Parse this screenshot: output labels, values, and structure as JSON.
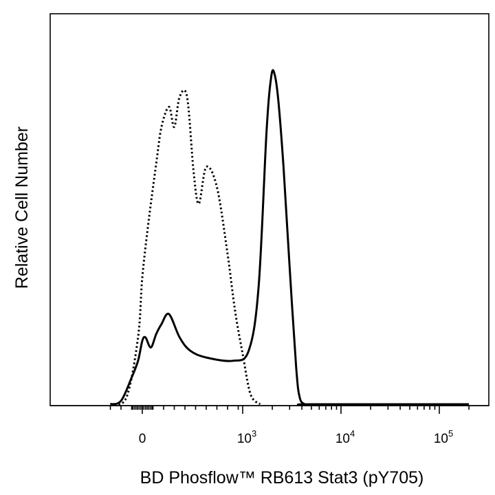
{
  "chart_data": {
    "type": "line",
    "title": "",
    "xlabel": "BD Phosflow™ RB613 Stat3 (pY705)",
    "ylabel": "Relative Cell Number",
    "x_scale": "biexponential",
    "xlim": [
      -300,
      200000
    ],
    "ylim": [
      0,
      100
    ],
    "grid": false,
    "legend": "none",
    "x_ticks": [
      {
        "value": 0,
        "base": "0",
        "exp": ""
      },
      {
        "value": 1000,
        "base": "10",
        "exp": "3"
      },
      {
        "value": 10000,
        "base": "10",
        "exp": "4"
      },
      {
        "value": 100000,
        "base": "10",
        "exp": "5"
      }
    ],
    "series": [
      {
        "style": "dotted",
        "color": "#000000",
        "x": [
          -300,
          -150,
          -40,
          0,
          60,
          130,
          180,
          250,
          300,
          350,
          420,
          480,
          530,
          600,
          700,
          800,
          870,
          1000,
          1200,
          1500
        ],
        "y": [
          0,
          2,
          20,
          38,
          55,
          72,
          83,
          89,
          83,
          92,
          92,
          70,
          60,
          71,
          65,
          45,
          28,
          15,
          3,
          0
        ]
      },
      {
        "style": "solid",
        "color": "#000000",
        "x": [
          -300,
          -200,
          -100,
          -40,
          0,
          30,
          80,
          130,
          180,
          250,
          350,
          450,
          600,
          850,
          1150,
          1450,
          1750,
          1950,
          2100,
          2300,
          2600,
          3000,
          3500,
          3800,
          4300,
          5000,
          200000
        ],
        "y": [
          0,
          1,
          8,
          13,
          19,
          20,
          17,
          21,
          24,
          27,
          20,
          16,
          14,
          13,
          16,
          35,
          82,
          98,
          99,
          91,
          71,
          41,
          11,
          2,
          0,
          0,
          0
        ]
      }
    ]
  }
}
